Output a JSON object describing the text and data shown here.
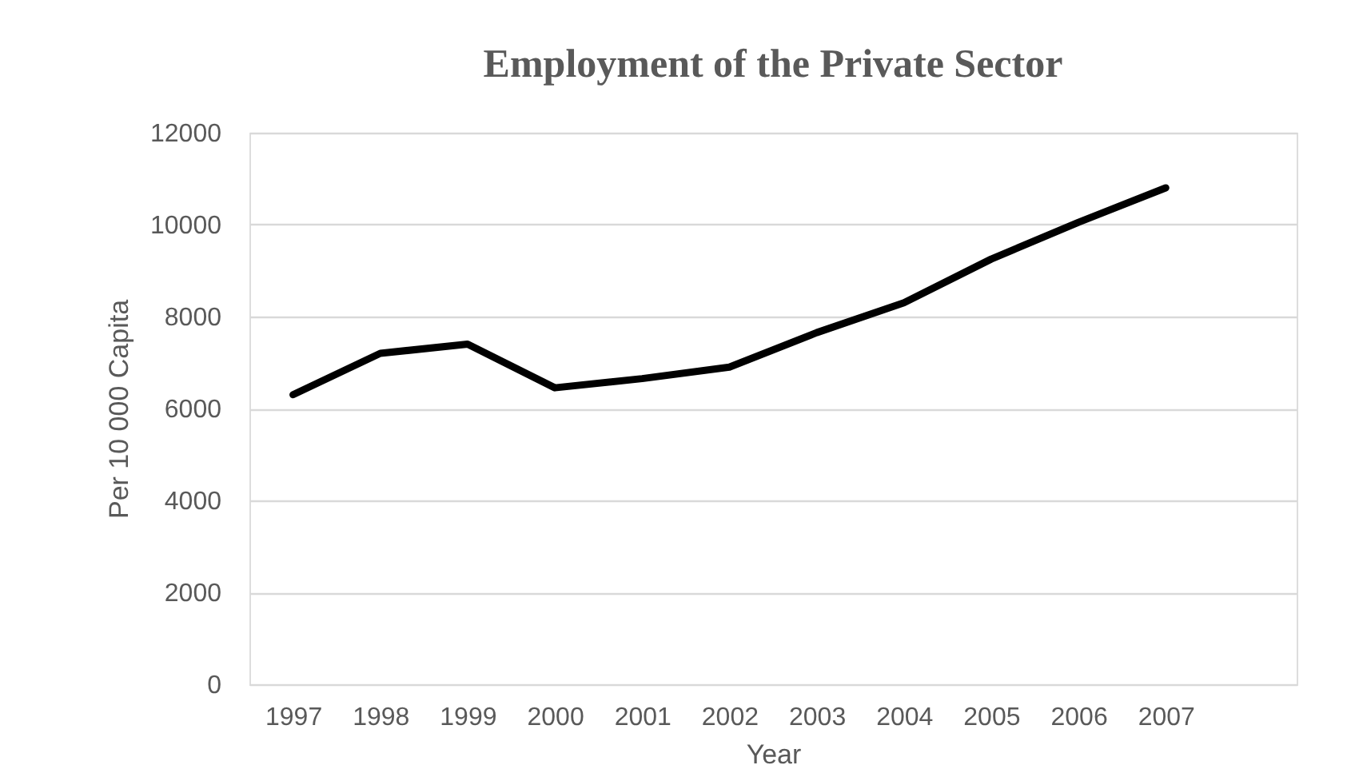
{
  "chart_data": {
    "type": "line",
    "title": "Employment of the Private Sector",
    "xlabel": "Year",
    "ylabel": "Per 10 000 Capita",
    "categories": [
      "1997",
      "1998",
      "1999",
      "2000",
      "2001",
      "2002",
      "2003",
      "2004",
      "2005",
      "2006",
      "2007",
      null
    ],
    "series": [
      {
        "color": "#000000",
        "values": [
          6300,
          7200,
          7400,
          6450,
          6650,
          6900,
          7650,
          8300,
          9250,
          10050,
          10800,
          null
        ]
      }
    ],
    "ylim": [
      0,
      12000
    ],
    "yticks": [
      0,
      2000,
      4000,
      6000,
      8000,
      10000,
      12000
    ],
    "grid": "y",
    "marker": "none",
    "line_style": "solid"
  }
}
